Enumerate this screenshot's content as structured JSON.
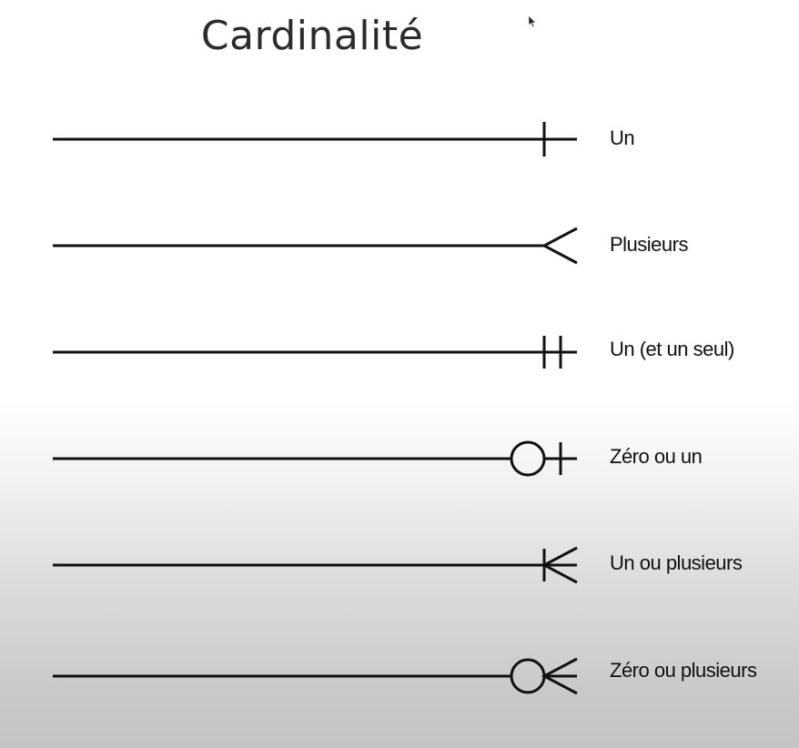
{
  "title": "Cardinalité",
  "rows": [
    {
      "label": "Un",
      "notation": "one"
    },
    {
      "label": "Plusieurs",
      "notation": "many"
    },
    {
      "label": "Un (et un seul)",
      "notation": "one-and-only-one"
    },
    {
      "label": "Zéro ou un",
      "notation": "zero-or-one"
    },
    {
      "label": "Un ou plusieurs",
      "notation": "one-or-many"
    },
    {
      "label": "Zéro ou plusieurs",
      "notation": "zero-or-many"
    }
  ],
  "icons": {
    "cursor": "mouse-pointer-icon"
  },
  "colors": {
    "stroke": "#111111",
    "title": "#2c2c2c"
  }
}
